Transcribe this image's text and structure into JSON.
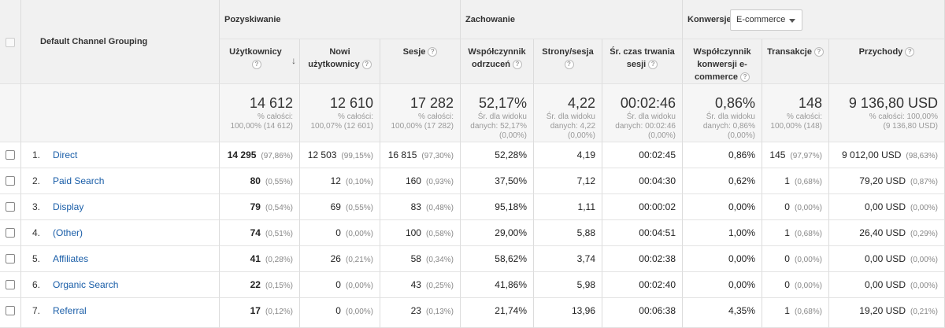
{
  "header": {
    "dimension_label": "Default Channel Grouping",
    "groups": {
      "acquisition": "Pozyskiwanie",
      "behavior": "Zachowanie",
      "conversions": "Konwersje"
    },
    "conversion_select": "E-commerce",
    "columns": {
      "users": "Użytkownicy",
      "new_users": "Nowi użytkownicy",
      "sessions": "Sesje",
      "bounce": "Współczynnik odrzuceń",
      "pages": "Strony/sesja",
      "duration": "Śr. czas trwania sesji",
      "conv_rate": "Współczynnik konwersji e-commerce",
      "transactions": "Transakcje",
      "revenue": "Przychody"
    },
    "help_icon": "?"
  },
  "totals": {
    "users": {
      "value": "14 612",
      "sub": "% całości:\n100,00% (14 612)"
    },
    "new_users": {
      "value": "12 610",
      "sub": "% całości:\n100,07% (12 601)"
    },
    "sessions": {
      "value": "17 282",
      "sub": "% całości:\n100,00% (17 282)"
    },
    "bounce": {
      "value": "52,17%",
      "sub": "Śr. dla widoku\ndanych: 52,17%\n(0,00%)"
    },
    "pages": {
      "value": "4,22",
      "sub": "Śr. dla widoku\ndanych: 4,22\n(0,00%)"
    },
    "duration": {
      "value": "00:02:46",
      "sub": "Śr. dla widoku\ndanych: 00:02:46\n(0,00%)"
    },
    "conv_rate": {
      "value": "0,86%",
      "sub": "Śr. dla widoku\ndanych: 0,86%\n(0,00%)"
    },
    "transactions": {
      "value": "148",
      "sub": "% całości:\n100,00% (148)"
    },
    "revenue": {
      "value": "9 136,80 USD",
      "sub": "% całości: 100,00%\n(9 136,80 USD)"
    }
  },
  "rows": [
    {
      "idx": "1.",
      "channel": "Direct",
      "users": "14 295",
      "users_pct": "(97,86%)",
      "new_users": "12 503",
      "new_users_pct": "(99,15%)",
      "sessions": "16 815",
      "sessions_pct": "(97,30%)",
      "bounce": "52,28%",
      "pages": "4,19",
      "duration": "00:02:45",
      "conv_rate": "0,86%",
      "transactions": "145",
      "transactions_pct": "(97,97%)",
      "revenue": "9 012,00 USD",
      "revenue_pct": "(98,63%)"
    },
    {
      "idx": "2.",
      "channel": "Paid Search",
      "users": "80",
      "users_pct": "(0,55%)",
      "new_users": "12",
      "new_users_pct": "(0,10%)",
      "sessions": "160",
      "sessions_pct": "(0,93%)",
      "bounce": "37,50%",
      "pages": "7,12",
      "duration": "00:04:30",
      "conv_rate": "0,62%",
      "transactions": "1",
      "transactions_pct": "(0,68%)",
      "revenue": "79,20 USD",
      "revenue_pct": "(0,87%)"
    },
    {
      "idx": "3.",
      "channel": "Display",
      "users": "79",
      "users_pct": "(0,54%)",
      "new_users": "69",
      "new_users_pct": "(0,55%)",
      "sessions": "83",
      "sessions_pct": "(0,48%)",
      "bounce": "95,18%",
      "pages": "1,11",
      "duration": "00:00:02",
      "conv_rate": "0,00%",
      "transactions": "0",
      "transactions_pct": "(0,00%)",
      "revenue": "0,00 USD",
      "revenue_pct": "(0,00%)"
    },
    {
      "idx": "4.",
      "channel": "(Other)",
      "users": "74",
      "users_pct": "(0,51%)",
      "new_users": "0",
      "new_users_pct": "(0,00%)",
      "sessions": "100",
      "sessions_pct": "(0,58%)",
      "bounce": "29,00%",
      "pages": "5,88",
      "duration": "00:04:51",
      "conv_rate": "1,00%",
      "transactions": "1",
      "transactions_pct": "(0,68%)",
      "revenue": "26,40 USD",
      "revenue_pct": "(0,29%)"
    },
    {
      "idx": "5.",
      "channel": "Affiliates",
      "users": "41",
      "users_pct": "(0,28%)",
      "new_users": "26",
      "new_users_pct": "(0,21%)",
      "sessions": "58",
      "sessions_pct": "(0,34%)",
      "bounce": "58,62%",
      "pages": "3,74",
      "duration": "00:02:38",
      "conv_rate": "0,00%",
      "transactions": "0",
      "transactions_pct": "(0,00%)",
      "revenue": "0,00 USD",
      "revenue_pct": "(0,00%)"
    },
    {
      "idx": "6.",
      "channel": "Organic Search",
      "users": "22",
      "users_pct": "(0,15%)",
      "new_users": "0",
      "new_users_pct": "(0,00%)",
      "sessions": "43",
      "sessions_pct": "(0,25%)",
      "bounce": "41,86%",
      "pages": "5,98",
      "duration": "00:02:40",
      "conv_rate": "0,00%",
      "transactions": "0",
      "transactions_pct": "(0,00%)",
      "revenue": "0,00 USD",
      "revenue_pct": "(0,00%)"
    },
    {
      "idx": "7.",
      "channel": "Referral",
      "users": "17",
      "users_pct": "(0,12%)",
      "new_users": "0",
      "new_users_pct": "(0,00%)",
      "sessions": "23",
      "sessions_pct": "(0,13%)",
      "bounce": "21,74%",
      "pages": "13,96",
      "duration": "00:06:38",
      "conv_rate": "4,35%",
      "transactions": "1",
      "transactions_pct": "(0,68%)",
      "revenue": "19,20 USD",
      "revenue_pct": "(0,21%)"
    }
  ],
  "colors": {
    "link": "#1a5ea8",
    "header_bg": "#f1f1f1",
    "border": "#dcdcdc"
  }
}
